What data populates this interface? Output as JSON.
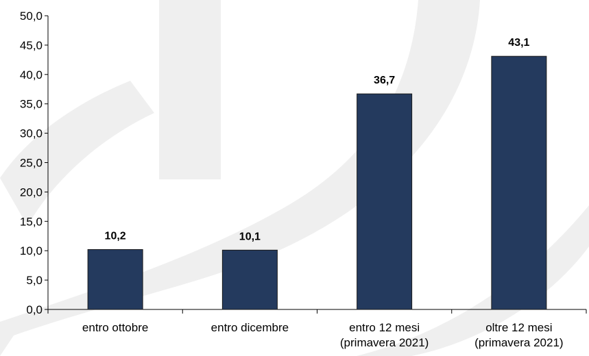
{
  "chart_data": {
    "type": "bar",
    "categories": [
      [
        "entro ottobre"
      ],
      [
        "entro dicembre"
      ],
      [
        "entro 12 mesi",
        "(primavera 2021)"
      ],
      [
        "oltre 12 mesi",
        "(primavera 2021)"
      ]
    ],
    "values": [
      10.2,
      10.1,
      36.7,
      43.1
    ],
    "data_labels": [
      "10,2",
      "10,1",
      "36,7",
      "43,1"
    ],
    "y_ticks": [
      "0,0",
      "5,0",
      "10,0",
      "15,0",
      "20,0",
      "25,0",
      "30,0",
      "35,0",
      "40,0",
      "45,0",
      "50,0"
    ],
    "ylim": [
      0,
      50
    ],
    "title": "",
    "xlabel": "",
    "ylabel": "",
    "grid": false,
    "bar_color": "#243a5e",
    "bar_outline": "#1a1a1a",
    "watermark_color": "#efefef"
  }
}
